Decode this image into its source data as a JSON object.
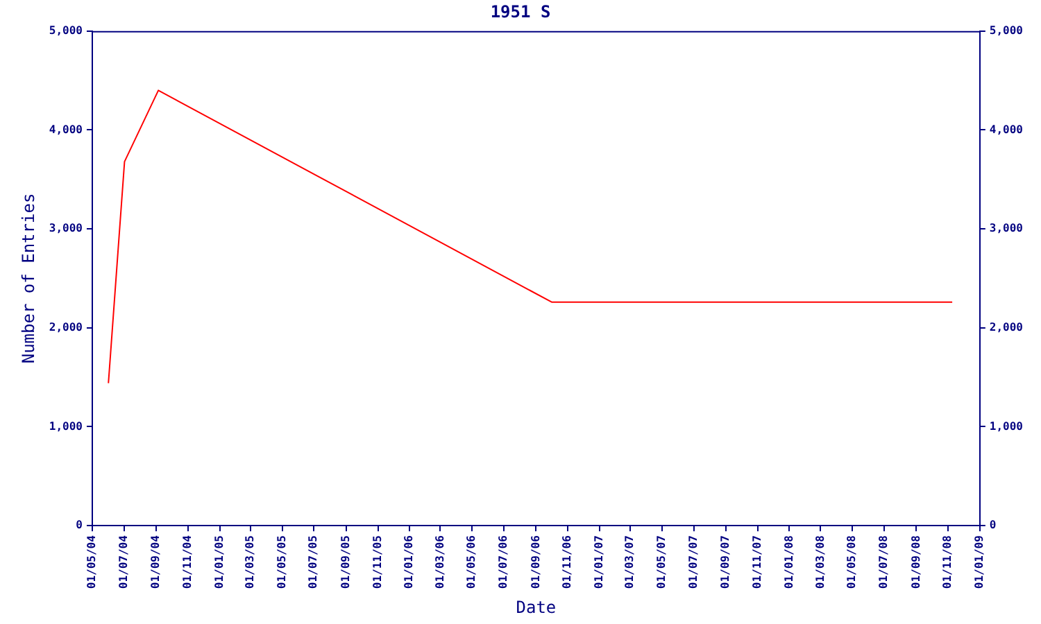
{
  "chart_data": {
    "type": "line",
    "title": "1951 S",
    "xlabel": "Date",
    "ylabel": "Number of Entries",
    "x": [
      "2004-06-01",
      "2004-07-02",
      "2004-09-05",
      "2006-10-01",
      "2008-11-09"
    ],
    "series": [
      {
        "color": "#ff0000",
        "values": [
          1440,
          3680,
          4400,
          2260,
          2260
        ]
      }
    ],
    "xlim": [
      "2004-05-01",
      "2009-01-01"
    ],
    "xticks": [
      {
        "value": "2004-05-01",
        "label": "01/05/04"
      },
      {
        "value": "2004-07-01",
        "label": "01/07/04"
      },
      {
        "value": "2004-09-01",
        "label": "01/09/04"
      },
      {
        "value": "2004-11-01",
        "label": "01/11/04"
      },
      {
        "value": "2005-01-01",
        "label": "01/01/05"
      },
      {
        "value": "2005-03-01",
        "label": "01/03/05"
      },
      {
        "value": "2005-05-01",
        "label": "01/05/05"
      },
      {
        "value": "2005-07-01",
        "label": "01/07/05"
      },
      {
        "value": "2005-09-01",
        "label": "01/09/05"
      },
      {
        "value": "2005-11-01",
        "label": "01/11/05"
      },
      {
        "value": "2006-01-01",
        "label": "01/01/06"
      },
      {
        "value": "2006-03-01",
        "label": "01/03/06"
      },
      {
        "value": "2006-05-01",
        "label": "01/05/06"
      },
      {
        "value": "2006-07-01",
        "label": "01/07/06"
      },
      {
        "value": "2006-09-01",
        "label": "01/09/06"
      },
      {
        "value": "2006-11-01",
        "label": "01/11/06"
      },
      {
        "value": "2007-01-01",
        "label": "01/01/07"
      },
      {
        "value": "2007-03-01",
        "label": "01/03/07"
      },
      {
        "value": "2007-05-01",
        "label": "01/05/07"
      },
      {
        "value": "2007-07-01",
        "label": "01/07/07"
      },
      {
        "value": "2007-09-01",
        "label": "01/09/07"
      },
      {
        "value": "2007-11-01",
        "label": "01/11/07"
      },
      {
        "value": "2008-01-01",
        "label": "01/01/08"
      },
      {
        "value": "2008-03-01",
        "label": "01/03/08"
      },
      {
        "value": "2008-05-01",
        "label": "01/05/08"
      },
      {
        "value": "2008-07-01",
        "label": "01/07/08"
      },
      {
        "value": "2008-09-01",
        "label": "01/09/08"
      },
      {
        "value": "2008-11-01",
        "label": "01/11/08"
      },
      {
        "value": "2009-01-01",
        "label": "01/01/09"
      }
    ],
    "ylim": [
      0,
      5000
    ],
    "yticks": [
      0,
      {
        "value": 1000,
        "label": "1,000"
      },
      {
        "value": 2000,
        "label": "2,000"
      },
      {
        "value": 3000,
        "label": "3,000"
      },
      {
        "value": 4000,
        "label": "4,000"
      },
      {
        "value": 5000,
        "label": "5,000"
      }
    ],
    "y2lim": [
      0,
      5000
    ],
    "y2ticks": [
      0,
      {
        "value": 1000,
        "label": "1,000"
      },
      {
        "value": 2000,
        "label": "2,000"
      },
      {
        "value": 3000,
        "label": "3,000"
      },
      {
        "value": 4000,
        "label": "4,000"
      },
      {
        "value": 5000,
        "label": "5,000"
      }
    ],
    "grid": false,
    "legend": false,
    "marker": "none",
    "line_style": "solid"
  }
}
